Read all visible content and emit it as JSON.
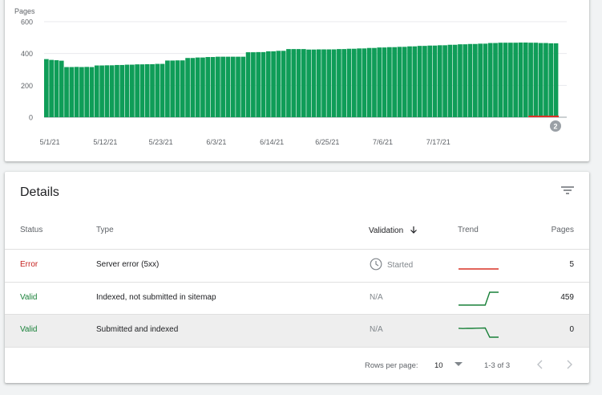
{
  "chart": {
    "y_axis_title": "Pages",
    "badge": "2"
  },
  "chart_data": {
    "type": "bar",
    "y_title": "Pages",
    "ylim": [
      0,
      600
    ],
    "y_ticks": [
      0,
      200,
      400,
      600
    ],
    "x_ticks": [
      "5/1/21",
      "5/12/21",
      "5/23/21",
      "6/3/21",
      "6/14/21",
      "6/25/21",
      "7/6/21",
      "7/17/21"
    ],
    "series": [
      {
        "name": "Valid",
        "color": "#0f9d58",
        "values": [
          365,
          360,
          358,
          355,
          315,
          315,
          316,
          315,
          316,
          315,
          325,
          325,
          326,
          326,
          328,
          328,
          330,
          330,
          332,
          332,
          333,
          333,
          335,
          335,
          356,
          356,
          357,
          357,
          372,
          372,
          375,
          375,
          378,
          378,
          380,
          380,
          380,
          380,
          380,
          380,
          408,
          408,
          409,
          409,
          414,
          414,
          417,
          417,
          428,
          428,
          428,
          428,
          425,
          425,
          426,
          426,
          426,
          426,
          428,
          428,
          430,
          430,
          432,
          432,
          435,
          435,
          438,
          438,
          440,
          440,
          442,
          442,
          445,
          445,
          448,
          448,
          450,
          450,
          452,
          452,
          455,
          455,
          458,
          458,
          460,
          460,
          462,
          462,
          466,
          466,
          468,
          468,
          468,
          468,
          469,
          469,
          468,
          468,
          466,
          466,
          464,
          464
        ]
      },
      {
        "name": "Error",
        "color": "#d93025",
        "values": [
          0,
          0,
          0,
          0,
          0,
          0,
          0,
          0,
          0,
          0,
          0,
          0,
          0,
          0,
          0,
          0,
          0,
          0,
          0,
          0,
          0,
          0,
          0,
          0,
          0,
          0,
          0,
          0,
          0,
          0,
          0,
          0,
          0,
          0,
          0,
          0,
          0,
          0,
          0,
          0,
          0,
          0,
          0,
          0,
          0,
          0,
          0,
          0,
          0,
          0,
          0,
          0,
          0,
          0,
          0,
          0,
          0,
          0,
          0,
          0,
          0,
          0,
          0,
          0,
          0,
          0,
          0,
          0,
          0,
          0,
          0,
          0,
          0,
          0,
          0,
          0,
          0,
          0,
          0,
          0,
          0,
          0,
          0,
          0,
          0,
          0,
          0,
          0,
          0,
          0,
          0,
          0,
          0,
          0,
          0,
          0,
          5,
          5,
          5,
          5,
          5,
          5
        ]
      }
    ]
  },
  "details": {
    "title": "Details",
    "columns": {
      "status": "Status",
      "type": "Type",
      "validation": "Validation",
      "trend": "Trend",
      "pages": "Pages"
    },
    "rows": [
      {
        "status": "Error",
        "type": "Server error (5xx)",
        "validation": "Started",
        "pages": "5",
        "trend": [
          5,
          5,
          5,
          5,
          5,
          5,
          5,
          5,
          5,
          5
        ]
      },
      {
        "status": "Valid",
        "type": "Indexed, not submitted in sitemap",
        "validation": "N/A",
        "pages": "459",
        "trend": [
          0,
          0,
          0,
          0,
          0,
          0,
          0,
          459,
          459,
          459
        ]
      },
      {
        "status": "Valid",
        "type": "Submitted and indexed",
        "validation": "N/A",
        "pages": "0",
        "trend": [
          320,
          310,
          318,
          315,
          322,
          326,
          330,
          0,
          0,
          0
        ]
      }
    ],
    "footer": {
      "rows_per_page_label": "Rows per page:",
      "rows_per_page_value": "10",
      "range": "1-3 of 3"
    }
  },
  "colors": {
    "valid": "#188038",
    "error": "#c5221f",
    "bar_valid": "#0f9d58",
    "bar_error": "#d93025"
  }
}
